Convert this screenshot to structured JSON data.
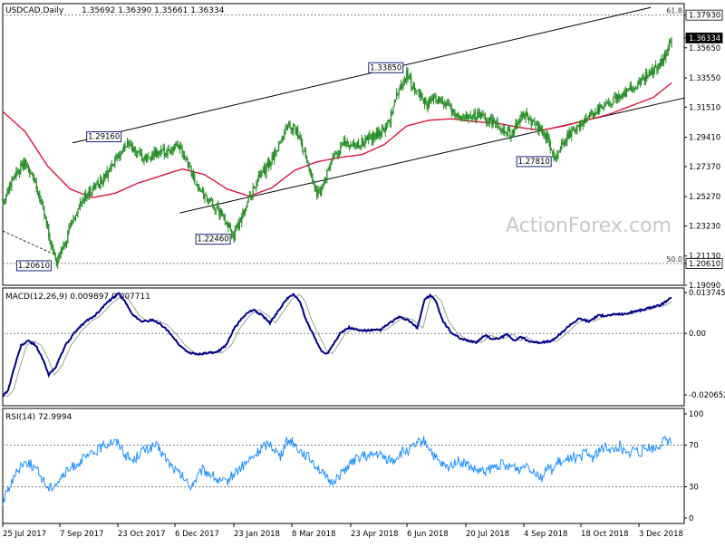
{
  "header": {
    "symbol": "USDCAD,Daily",
    "ohlc": "1.35692 1.36390 1.35661 1.36334"
  },
  "watermark": "ActionForex.com",
  "colors": {
    "candle": "#228b22",
    "ma": "#dc143c",
    "macd": "#00008b",
    "signal": "#a0a0a0",
    "rsi": "#1e90ff",
    "channel": "#000000",
    "label_bg": "#ffffff",
    "label_border": "#1a237e",
    "grid_dash": "#808080"
  },
  "x_axis": {
    "labels": [
      "25 Jul 2017",
      "7 Sep 2017",
      "23 Oct 2017",
      "6 Dec 2017",
      "23 Jan 2018",
      "8 Mar 2018",
      "23 Apr 2018",
      "6 Jun 2018",
      "20 Jul 2018",
      "4 Sep 2018",
      "18 Oct 2018",
      "3 Dec 2018"
    ]
  },
  "price_panel": {
    "y_ticks": [
      "1.37930",
      "1.36334",
      "1.35650",
      "1.33550",
      "1.31510",
      "1.29410",
      "1.27370",
      "1.25270",
      "1.23230",
      "1.21130",
      "1.20610",
      "1.19090"
    ],
    "fib_labels": [
      "61.8",
      "50.0"
    ],
    "annotations": [
      "1.29160",
      "1.33850",
      "1.27810",
      "1.22460",
      "1.20610"
    ]
  },
  "macd_panel": {
    "title": "MACD(12,26,9) 0.009897 0.007711",
    "y_ticks": [
      "0.013745",
      "0.00",
      "-0.020652"
    ]
  },
  "rsi_panel": {
    "title": "RSI(14) 72.9994",
    "y_ticks": [
      "100",
      "70",
      "30",
      "0"
    ]
  },
  "chart_data": [
    {
      "type": "candlestick",
      "title": "USDCAD,Daily",
      "last_ohlc": {
        "open": 1.35692,
        "high": 1.3639,
        "low": 1.35661,
        "close": 1.36334
      },
      "ylim": [
        1.1909,
        1.3873
      ],
      "x_tick_labels": [
        "25 Jul 2017",
        "7 Sep 2017",
        "23 Oct 2017",
        "6 Dec 2017",
        "23 Jan 2018",
        "8 Mar 2018",
        "23 Apr 2018",
        "6 Jun 2018",
        "20 Jul 2018",
        "4 Sep 2018",
        "18 Oct 2018",
        "3 Dec 2018"
      ],
      "close_anchors": [
        [
          0,
          1.248
        ],
        [
          10,
          1.268
        ],
        [
          20,
          1.276
        ],
        [
          28,
          1.265
        ],
        [
          36,
          1.245
        ],
        [
          42,
          1.222
        ],
        [
          48,
          1.2061
        ],
        [
          54,
          1.218
        ],
        [
          60,
          1.232
        ],
        [
          68,
          1.245
        ],
        [
          76,
          1.256
        ],
        [
          86,
          1.262
        ],
        [
          96,
          1.272
        ],
        [
          106,
          1.284
        ],
        [
          112,
          1.2916
        ],
        [
          118,
          1.283
        ],
        [
          126,
          1.278
        ],
        [
          136,
          1.282
        ],
        [
          148,
          1.285
        ],
        [
          158,
          1.288
        ],
        [
          164,
          1.279
        ],
        [
          172,
          1.262
        ],
        [
          180,
          1.252
        ],
        [
          190,
          1.245
        ],
        [
          200,
          1.235
        ],
        [
          206,
          1.2246
        ],
        [
          212,
          1.238
        ],
        [
          220,
          1.252
        ],
        [
          228,
          1.265
        ],
        [
          238,
          1.276
        ],
        [
          248,
          1.292
        ],
        [
          254,
          1.304
        ],
        [
          262,
          1.298
        ],
        [
          272,
          1.276
        ],
        [
          280,
          1.254
        ],
        [
          286,
          1.262
        ],
        [
          294,
          1.279
        ],
        [
          304,
          1.29
        ],
        [
          314,
          1.287
        ],
        [
          324,
          1.293
        ],
        [
          334,
          1.296
        ],
        [
          344,
          1.304
        ],
        [
          352,
          1.326
        ],
        [
          360,
          1.3385
        ],
        [
          368,
          1.326
        ],
        [
          378,
          1.318
        ],
        [
          388,
          1.322
        ],
        [
          398,
          1.314
        ],
        [
          410,
          1.308
        ],
        [
          420,
          1.31
        ],
        [
          430,
          1.307
        ],
        [
          440,
          1.303
        ],
        [
          452,
          1.296
        ],
        [
          464,
          1.31
        ],
        [
          474,
          1.303
        ],
        [
          486,
          1.293
        ],
        [
          492,
          1.2781
        ],
        [
          500,
          1.292
        ],
        [
          512,
          1.301
        ],
        [
          524,
          1.31
        ],
        [
          536,
          1.315
        ],
        [
          548,
          1.322
        ],
        [
          560,
          1.328
        ],
        [
          570,
          1.334
        ],
        [
          580,
          1.341
        ],
        [
          590,
          1.35
        ],
        [
          596,
          1.36334
        ]
      ],
      "moving_average_anchors": [
        [
          0,
          1.312
        ],
        [
          20,
          1.298
        ],
        [
          40,
          1.274
        ],
        [
          60,
          1.258
        ],
        [
          80,
          1.252
        ],
        [
          100,
          1.255
        ],
        [
          120,
          1.262
        ],
        [
          140,
          1.267
        ],
        [
          160,
          1.272
        ],
        [
          180,
          1.268
        ],
        [
          200,
          1.258
        ],
        [
          220,
          1.253
        ],
        [
          240,
          1.259
        ],
        [
          260,
          1.271
        ],
        [
          280,
          1.277
        ],
        [
          300,
          1.28
        ],
        [
          320,
          1.282
        ],
        [
          340,
          1.289
        ],
        [
          360,
          1.302
        ],
        [
          380,
          1.306
        ],
        [
          400,
          1.307
        ],
        [
          420,
          1.305
        ],
        [
          440,
          1.304
        ],
        [
          460,
          1.301
        ],
        [
          480,
          1.299
        ],
        [
          500,
          1.302
        ],
        [
          520,
          1.306
        ],
        [
          540,
          1.31
        ],
        [
          560,
          1.316
        ],
        [
          580,
          1.322
        ],
        [
          596,
          1.332
        ]
      ],
      "channel_upper": [
        [
          0,
          1.2788
        ],
        [
          596,
          1.388
        ]
      ],
      "channel_lower": [
        [
          0,
          1.2125
        ],
        [
          596,
          1.3215
        ]
      ],
      "horizontal_levels": [
        {
          "value": 1.3793,
          "label": "1.37930",
          "fib": "61.8"
        },
        {
          "value": 1.2061,
          "label": "1.20610",
          "fib": "50.0"
        }
      ],
      "point_labels": [
        {
          "text": "1.29160",
          "value": 1.2916
        },
        {
          "text": "1.33850",
          "value": 1.3385
        },
        {
          "text": "1.27810",
          "value": 1.2781
        },
        {
          "text": "1.22460",
          "value": 1.2246
        },
        {
          "text": "1.20610",
          "value": 1.2061
        }
      ]
    },
    {
      "type": "line",
      "title": "MACD(12,26,9) 0.009897 0.007711",
      "ylim": [
        -0.0243,
        0.0153
      ],
      "y_ticks": [
        0.013745,
        0.0,
        -0.020652
      ],
      "macd_anchors": [
        [
          0,
          -0.021
        ],
        [
          6,
          -0.019
        ],
        [
          12,
          -0.012
        ],
        [
          20,
          -0.004
        ],
        [
          28,
          -0.0025
        ],
        [
          36,
          -0.004
        ],
        [
          44,
          -0.009
        ],
        [
          50,
          -0.014
        ],
        [
          58,
          -0.011
        ],
        [
          68,
          -0.004
        ],
        [
          80,
          0.001
        ],
        [
          90,
          0.004
        ],
        [
          100,
          0.006
        ],
        [
          112,
          0.01
        ],
        [
          120,
          0.012
        ],
        [
          126,
          0.0135
        ],
        [
          134,
          0.01
        ],
        [
          142,
          0.006
        ],
        [
          152,
          0.004
        ],
        [
          162,
          0.0045
        ],
        [
          172,
          0.003
        ],
        [
          182,
          0.0
        ],
        [
          192,
          -0.004
        ],
        [
          202,
          -0.0065
        ],
        [
          212,
          -0.007
        ],
        [
          222,
          -0.0065
        ],
        [
          232,
          -0.0065
        ],
        [
          242,
          -0.004
        ],
        [
          252,
          0.002
        ],
        [
          262,
          0.006
        ],
        [
          272,
          0.008
        ],
        [
          282,
          0.006
        ],
        [
          290,
          0.0035
        ],
        [
          300,
          0.008
        ],
        [
          308,
          0.0115
        ],
        [
          316,
          0.0132
        ],
        [
          322,
          0.011
        ],
        [
          330,
          0.004
        ],
        [
          338,
          -0.001
        ],
        [
          346,
          -0.006
        ],
        [
          352,
          -0.0068
        ],
        [
          358,
          -0.004
        ],
        [
          366,
          0.0
        ],
        [
          376,
          0.002
        ],
        [
          386,
          0.001
        ],
        [
          396,
          0.001
        ],
        [
          410,
          0.0012
        ],
        [
          420,
          0.0035
        ],
        [
          430,
          0.0055
        ],
        [
          440,
          0.0045
        ],
        [
          450,
          0.0018
        ],
        [
          458,
          0.0115
        ],
        [
          464,
          0.0128
        ],
        [
          470,
          0.011
        ],
        [
          478,
          0.004
        ],
        [
          488,
          0.0
        ],
        [
          498,
          -0.002
        ],
        [
          506,
          -0.0025
        ],
        [
          514,
          -0.003
        ],
        [
          524,
          -0.0005
        ],
        [
          532,
          -0.002
        ],
        [
          540,
          -0.0015
        ],
        [
          548,
          -0.0002
        ],
        [
          556,
          -0.0025
        ],
        [
          562,
          -0.001
        ],
        [
          570,
          -0.0025
        ],
        [
          580,
          -0.003
        ],
        [
          586,
          -0.003
        ],
        [
          596,
          -0.0025
        ],
        [
          606,
          0.0
        ],
        [
          616,
          0.003
        ],
        [
          626,
          0.005
        ],
        [
          636,
          0.004
        ],
        [
          646,
          0.006
        ],
        [
          656,
          0.006
        ],
        [
          666,
          0.0065
        ],
        [
          676,
          0.0065
        ],
        [
          686,
          0.0075
        ],
        [
          696,
          0.008
        ],
        [
          706,
          0.009
        ],
        [
          714,
          0.0095
        ],
        [
          726,
          0.012
        ]
      ],
      "signal_lag_bars": 6
    },
    {
      "type": "line",
      "title": "RSI(14) 72.9994",
      "ylim": [
        0,
        100
      ],
      "y_ticks": [
        100,
        70,
        30,
        0
      ],
      "levels": [
        70,
        30
      ],
      "last_value": 72.9994,
      "rsi_anchors": [
        [
          0,
          14
        ],
        [
          6,
          28
        ],
        [
          12,
          38
        ],
        [
          20,
          52
        ],
        [
          28,
          54
        ],
        [
          36,
          47
        ],
        [
          44,
          38
        ],
        [
          50,
          28
        ],
        [
          58,
          33
        ],
        [
          68,
          42
        ],
        [
          78,
          50
        ],
        [
          88,
          56
        ],
        [
          96,
          60
        ],
        [
          104,
          65
        ],
        [
          112,
          70
        ],
        [
          120,
          74
        ],
        [
          128,
          72
        ],
        [
          136,
          60
        ],
        [
          144,
          55
        ],
        [
          152,
          64
        ],
        [
          160,
          66
        ],
        [
          168,
          70
        ],
        [
          176,
          62
        ],
        [
          184,
          52
        ],
        [
          192,
          44
        ],
        [
          200,
          38
        ],
        [
          206,
          30
        ],
        [
          212,
          36
        ],
        [
          220,
          46
        ],
        [
          230,
          42
        ],
        [
          238,
          35
        ],
        [
          246,
          34
        ],
        [
          254,
          42
        ],
        [
          262,
          48
        ],
        [
          270,
          54
        ],
        [
          278,
          60
        ],
        [
          286,
          68
        ],
        [
          294,
          72
        ],
        [
          300,
          66
        ],
        [
          306,
          58
        ],
        [
          312,
          73
        ],
        [
          318,
          75
        ],
        [
          324,
          68
        ],
        [
          332,
          62
        ],
        [
          340,
          56
        ],
        [
          348,
          48
        ],
        [
          356,
          38
        ],
        [
          362,
          34
        ],
        [
          370,
          40
        ],
        [
          378,
          48
        ],
        [
          388,
          55
        ],
        [
          396,
          60
        ],
        [
          404,
          58
        ],
        [
          412,
          62
        ],
        [
          420,
          58
        ],
        [
          430,
          55
        ],
        [
          440,
          63
        ],
        [
          450,
          66
        ],
        [
          458,
          72
        ],
        [
          464,
          74
        ],
        [
          470,
          68
        ],
        [
          476,
          58
        ],
        [
          482,
          52
        ],
        [
          490,
          48
        ],
        [
          500,
          55
        ],
        [
          510,
          52
        ],
        [
          520,
          46
        ],
        [
          530,
          44
        ],
        [
          540,
          48
        ],
        [
          550,
          52
        ],
        [
          556,
          47
        ],
        [
          562,
          50
        ],
        [
          570,
          46
        ],
        [
          576,
          53
        ],
        [
          582,
          48
        ],
        [
          588,
          44
        ],
        [
          594,
          39
        ],
        [
          600,
          48
        ],
        [
          606,
          45
        ],
        [
          612,
          54
        ],
        [
          620,
          52
        ],
        [
          626,
          60
        ],
        [
          634,
          56
        ],
        [
          642,
          63
        ],
        [
          650,
          58
        ],
        [
          658,
          65
        ],
        [
          666,
          68
        ],
        [
          672,
          64
        ],
        [
          680,
          70
        ],
        [
          688,
          60
        ],
        [
          696,
          67
        ],
        [
          702,
          62
        ],
        [
          710,
          68
        ],
        [
          718,
          66
        ],
        [
          726,
          72
        ],
        [
          732,
          75
        ],
        [
          737,
          73
        ]
      ]
    }
  ]
}
